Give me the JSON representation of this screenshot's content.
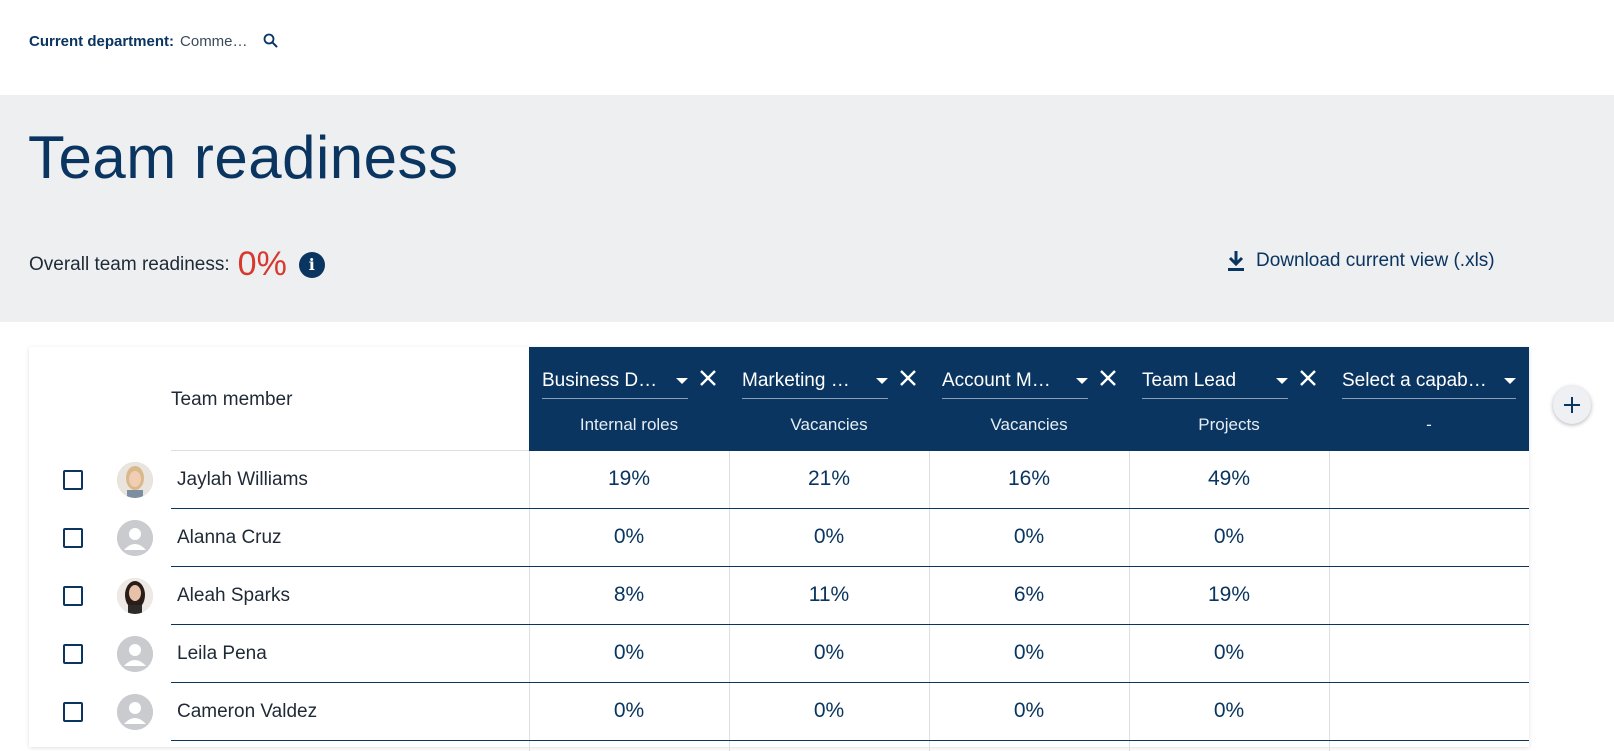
{
  "header": {
    "dept_label": "Current department:",
    "dept_value": "Comme…"
  },
  "hero": {
    "title": "Team readiness",
    "readiness_label": "Overall team readiness:",
    "readiness_value": "0%",
    "download_label": "Download current view (.xls)"
  },
  "table": {
    "member_header": "Team member",
    "capabilities": [
      {
        "label": "Business D…",
        "sub": "Internal roles",
        "removable": true
      },
      {
        "label": "Marketing …",
        "sub": "Vacancies",
        "removable": true
      },
      {
        "label": "Account M…",
        "sub": "Vacancies",
        "removable": true
      },
      {
        "label": "Team Lead",
        "sub": "Projects",
        "removable": true
      },
      {
        "label": "Select a capab…",
        "sub": "-",
        "removable": false
      }
    ],
    "rows": [
      {
        "name": "Jaylah Williams",
        "avatar": "photo-blonde",
        "values": [
          "19%",
          "21%",
          "16%",
          "49%",
          ""
        ]
      },
      {
        "name": "Alanna Cruz",
        "avatar": "placeholder",
        "values": [
          "0%",
          "0%",
          "0%",
          "0%",
          ""
        ]
      },
      {
        "name": "Aleah Sparks",
        "avatar": "photo-brunette",
        "values": [
          "8%",
          "11%",
          "6%",
          "19%",
          ""
        ]
      },
      {
        "name": "Leila Pena",
        "avatar": "placeholder",
        "values": [
          "0%",
          "0%",
          "0%",
          "0%",
          ""
        ]
      },
      {
        "name": "Cameron Valdez",
        "avatar": "placeholder",
        "values": [
          "0%",
          "0%",
          "0%",
          "0%",
          ""
        ]
      }
    ]
  },
  "colors": {
    "navy": "#0a3560",
    "readiness_red": "#d63a2f",
    "hero_bg": "#eeeff1"
  }
}
